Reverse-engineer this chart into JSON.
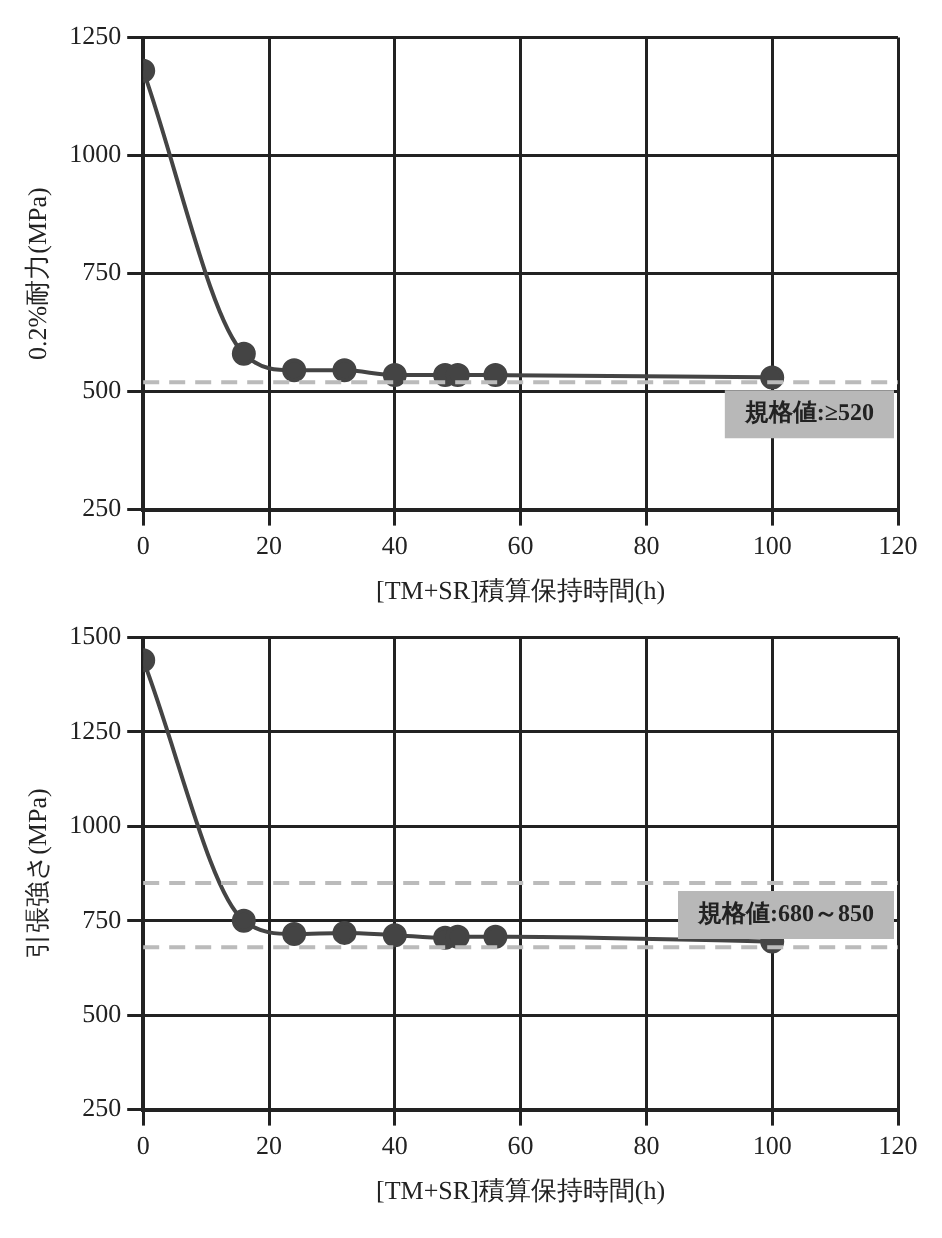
{
  "chart_data": [
    {
      "type": "line",
      "xlabel": "[TM+SR]積算保持時間(h)",
      "ylabel": "0.2%耐力(MPa)",
      "xlim": [
        0,
        120
      ],
      "xticks": [
        0,
        20,
        40,
        60,
        80,
        100,
        120
      ],
      "ylim": [
        250,
        1250
      ],
      "yticks": [
        250,
        500,
        750,
        1000,
        1250
      ],
      "grid": true,
      "marker": "circle",
      "legend": false,
      "series": [
        {
          "color": "#444444",
          "x": [
            0,
            16,
            24,
            32,
            40,
            48,
            50,
            56,
            100
          ],
          "values": [
            1180,
            580,
            545,
            545,
            535,
            535,
            535,
            535,
            530
          ]
        }
      ],
      "ref_lines": [
        {
          "axis": "y",
          "value": 520,
          "label": "規格値:≥520",
          "color": "#bbbbbb",
          "line_style": "dashed"
        }
      ]
    },
    {
      "type": "line",
      "xlabel": "[TM+SR]積算保持時間(h)",
      "ylabel": "引張強さ(MPa)",
      "xlim": [
        0,
        120
      ],
      "xticks": [
        0,
        20,
        40,
        60,
        80,
        100,
        120
      ],
      "ylim": [
        250,
        1500
      ],
      "yticks": [
        250,
        500,
        750,
        1000,
        1250,
        1500
      ],
      "grid": true,
      "marker": "circle",
      "legend": false,
      "series": [
        {
          "color": "#444444",
          "x": [
            0,
            16,
            24,
            32,
            40,
            48,
            50,
            56,
            100
          ],
          "values": [
            1440,
            750,
            715,
            718,
            712,
            705,
            708,
            708,
            695
          ]
        }
      ],
      "ref_lines": [
        {
          "axis": "y",
          "value": 850,
          "label": "規格値:680～850",
          "color": "#bbbbbb",
          "line_style": "dashed"
        },
        {
          "axis": "y",
          "value": 680,
          "label": null,
          "color": "#bbbbbb",
          "line_style": "dashed"
        }
      ]
    }
  ]
}
